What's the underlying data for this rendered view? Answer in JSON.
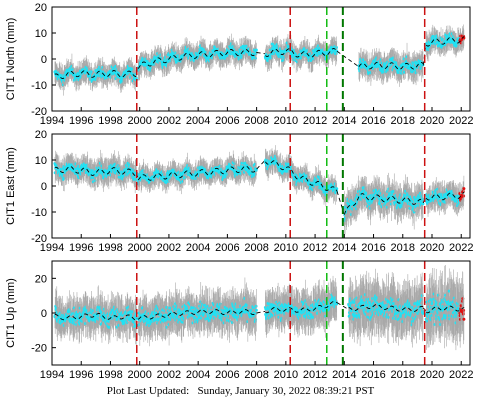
{
  "footer": {
    "label": "Plot Last Updated:",
    "date": "Sunday, January 30, 2022 08:39:21 PST"
  },
  "colors": {
    "data": "#1fe3f5",
    "error_bars": "#a9a9a9",
    "model": "#000000",
    "recent": "#e01010",
    "event_red": "#cc1111",
    "event_green": "#11bb11",
    "event_darkgreen": "#007700"
  },
  "chart_data": [
    {
      "type": "scatter",
      "ylabel": "CIT1 North (mm)",
      "xlim": [
        1994,
        2022.6
      ],
      "ylim": [
        -20,
        20
      ],
      "x_ticks": [
        1994,
        1996,
        1998,
        2000,
        2002,
        2004,
        2006,
        2008,
        2010,
        2012,
        2014,
        2016,
        2018,
        2020,
        2022
      ],
      "y_ticks": [
        -20,
        -10,
        0,
        10,
        20
      ],
      "segments": [
        {
          "x": [
            1994.2,
            1995,
            1996,
            1997,
            1998,
            1999,
            1999.8
          ],
          "y": [
            -7,
            -6,
            -5.5,
            -6,
            -5.5,
            -6,
            -5.5
          ],
          "spread": 3.5
        },
        {
          "x": [
            1999.9,
            2001,
            2002,
            2003,
            2004,
            2005,
            2006,
            2007,
            2008
          ],
          "y": [
            -3,
            -1,
            0,
            1,
            1.5,
            2,
            2.5,
            2.5,
            2.5
          ],
          "spread": 3.5
        },
        {
          "x": [
            2008.6,
            2009,
            2010,
            2010.5,
            2011,
            2012,
            2013.5
          ],
          "y": [
            2,
            2.5,
            3,
            2.5,
            1.5,
            2,
            3
          ],
          "spread": 3.5
        },
        {
          "x": [
            2015,
            2016,
            2017,
            2018,
            2019,
            2019.4
          ],
          "y": [
            -3,
            -2.5,
            -2.5,
            -3,
            -2.5,
            -2.5
          ],
          "spread": 4
        },
        {
          "x": [
            2019.6,
            2020,
            2021,
            2022.2
          ],
          "y": [
            6,
            6.5,
            7,
            7.5
          ],
          "spread": 3.5
        }
      ],
      "events": [
        {
          "x": 1999.8,
          "color": "red"
        },
        {
          "x": 2010.3,
          "color": "red"
        },
        {
          "x": 2012.8,
          "color": "green"
        },
        {
          "x": 2013.9,
          "color": "darkgreen"
        },
        {
          "x": 2019.5,
          "color": "red"
        }
      ]
    },
    {
      "type": "scatter",
      "ylabel": "CIT1 East (mm)",
      "xlim": [
        1994,
        2022.6
      ],
      "ylim": [
        -20,
        20
      ],
      "x_ticks": [
        1994,
        1996,
        1998,
        2000,
        2002,
        2004,
        2006,
        2008,
        2010,
        2012,
        2014,
        2016,
        2018,
        2020,
        2022
      ],
      "y_ticks": [
        -20,
        -10,
        0,
        10,
        20
      ],
      "segments": [
        {
          "x": [
            1994.2,
            1995,
            1996,
            1997,
            1998,
            1999,
            1999.8
          ],
          "y": [
            6,
            6.5,
            6,
            5,
            6,
            5.5,
            5
          ],
          "spread": 4
        },
        {
          "x": [
            1999.9,
            2001,
            2002,
            2003,
            2004,
            2005,
            2006,
            2007,
            2008
          ],
          "y": [
            3,
            3.5,
            4,
            4.5,
            5,
            5.5,
            6,
            6.5,
            6.5
          ],
          "spread": 3.5
        },
        {
          "x": [
            2008.6,
            2009,
            2010,
            2010.5,
            2011,
            2012,
            2013.5
          ],
          "y": [
            10,
            9,
            7,
            5,
            3,
            1,
            -2
          ],
          "spread": 3.5
        },
        {
          "x": [
            2014,
            2015,
            2016,
            2017,
            2018,
            2019,
            2019.4
          ],
          "y": [
            -11,
            -4,
            -4.5,
            -5,
            -5.5,
            -6,
            -6.5
          ],
          "spread": 5
        },
        {
          "x": [
            2019.6,
            2020,
            2021,
            2022.2
          ],
          "y": [
            -4,
            -4.5,
            -4,
            -3.5
          ],
          "spread": 4
        }
      ],
      "events": [
        {
          "x": 1999.8,
          "color": "red"
        },
        {
          "x": 2010.3,
          "color": "red"
        },
        {
          "x": 2012.8,
          "color": "green"
        },
        {
          "x": 2013.9,
          "color": "darkgreen"
        },
        {
          "x": 2019.5,
          "color": "red"
        }
      ]
    },
    {
      "type": "scatter",
      "ylabel": "CIT1 Up (mm)",
      "xlim": [
        1994,
        2022.6
      ],
      "ylim": [
        -30,
        30
      ],
      "x_ticks": [
        1994,
        1996,
        1998,
        2000,
        2002,
        2004,
        2006,
        2008,
        2010,
        2012,
        2014,
        2016,
        2018,
        2020,
        2022
      ],
      "y_ticks": [
        -20,
        0,
        20
      ],
      "segments": [
        {
          "x": [
            1994.2,
            1995,
            1996,
            1997,
            1998,
            1999,
            1999.8
          ],
          "y": [
            -2,
            -3,
            -2,
            -1,
            -3,
            -2,
            -3
          ],
          "spread": 9
        },
        {
          "x": [
            1999.9,
            2001,
            2002,
            2003,
            2004,
            2005,
            2006,
            2007,
            2008
          ],
          "y": [
            -3,
            -2,
            -1,
            0,
            0.5,
            1,
            0,
            1,
            0
          ],
          "spread": 9
        },
        {
          "x": [
            2008.6,
            2009,
            2010,
            2011,
            2012,
            2013.5
          ],
          "y": [
            1,
            2,
            2,
            1.5,
            2.5,
            6
          ],
          "spread": 9
        },
        {
          "x": [
            2014.3,
            2015,
            2016,
            2017,
            2018,
            2019,
            2019.4
          ],
          "y": [
            2,
            3,
            4,
            3,
            2,
            2,
            3
          ],
          "spread": 12
        },
        {
          "x": [
            2019.6,
            2020,
            2021,
            2022.2
          ],
          "y": [
            1,
            2,
            3,
            2
          ],
          "spread": 14
        }
      ],
      "events": [
        {
          "x": 1999.8,
          "color": "red"
        },
        {
          "x": 2010.3,
          "color": "red"
        },
        {
          "x": 2012.8,
          "color": "green"
        },
        {
          "x": 2013.9,
          "color": "darkgreen"
        },
        {
          "x": 2019.5,
          "color": "red"
        }
      ]
    }
  ]
}
